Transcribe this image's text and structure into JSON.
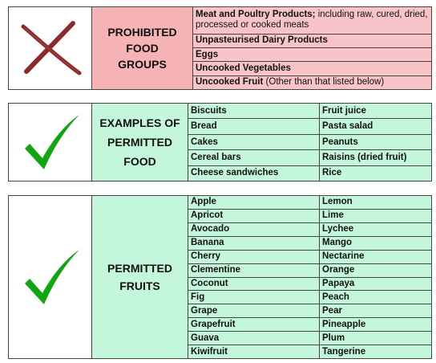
{
  "prohibited": {
    "icon": "cross-icon",
    "label_lines": [
      "PROHIBITED",
      "FOOD",
      "GROUPS"
    ],
    "items": [
      {
        "bold": "Meat and Poultry Products;",
        "normal": " including raw, cured, dried, processed or cooked meats"
      },
      {
        "bold": "Unpasteurised Dairy Products",
        "normal": ""
      },
      {
        "bold": "Eggs",
        "normal": ""
      },
      {
        "bold": "Uncooked Vegetables",
        "normal": ""
      },
      {
        "bold": "Uncooked Fruit",
        "normal": " (Other than that listed below)"
      }
    ]
  },
  "permitted_food": {
    "icon": "checkmark-icon",
    "label_lines": [
      "EXAMPLES OF",
      "PERMITTED",
      "FOOD"
    ],
    "rows": [
      [
        "Biscuits",
        "Fruit juice"
      ],
      [
        "Bread",
        "Pasta salad"
      ],
      [
        "Cakes",
        "Peanuts"
      ],
      [
        "Cereal bars",
        "Raisins (dried fruit)"
      ],
      [
        "Cheese sandwiches",
        "Rice"
      ]
    ]
  },
  "permitted_fruits": {
    "icon": "checkmark-icon",
    "label_lines": [
      "PERMITTED",
      "FRUITS"
    ],
    "rows": [
      [
        "Apple",
        "Lemon"
      ],
      [
        "Apricot",
        "Lime"
      ],
      [
        "Avocado",
        "Lychee"
      ],
      [
        "Banana",
        "Mango"
      ],
      [
        "Cherry",
        "Nectarine"
      ],
      [
        "Clementine",
        "Orange"
      ],
      [
        "Coconut",
        "Papaya"
      ],
      [
        "Fig",
        "Peach"
      ],
      [
        "Grape",
        "Pear"
      ],
      [
        "Grapefruit",
        "Pineapple"
      ],
      [
        "Guava",
        "Plum"
      ],
      [
        "Kiwifruit",
        "Tangerine"
      ]
    ]
  },
  "colors": {
    "cross": "#8b2a2a",
    "check": "#12a512",
    "prohibited_bg": "#f8c4c7",
    "permitted_bg": "#c4f6dc"
  }
}
